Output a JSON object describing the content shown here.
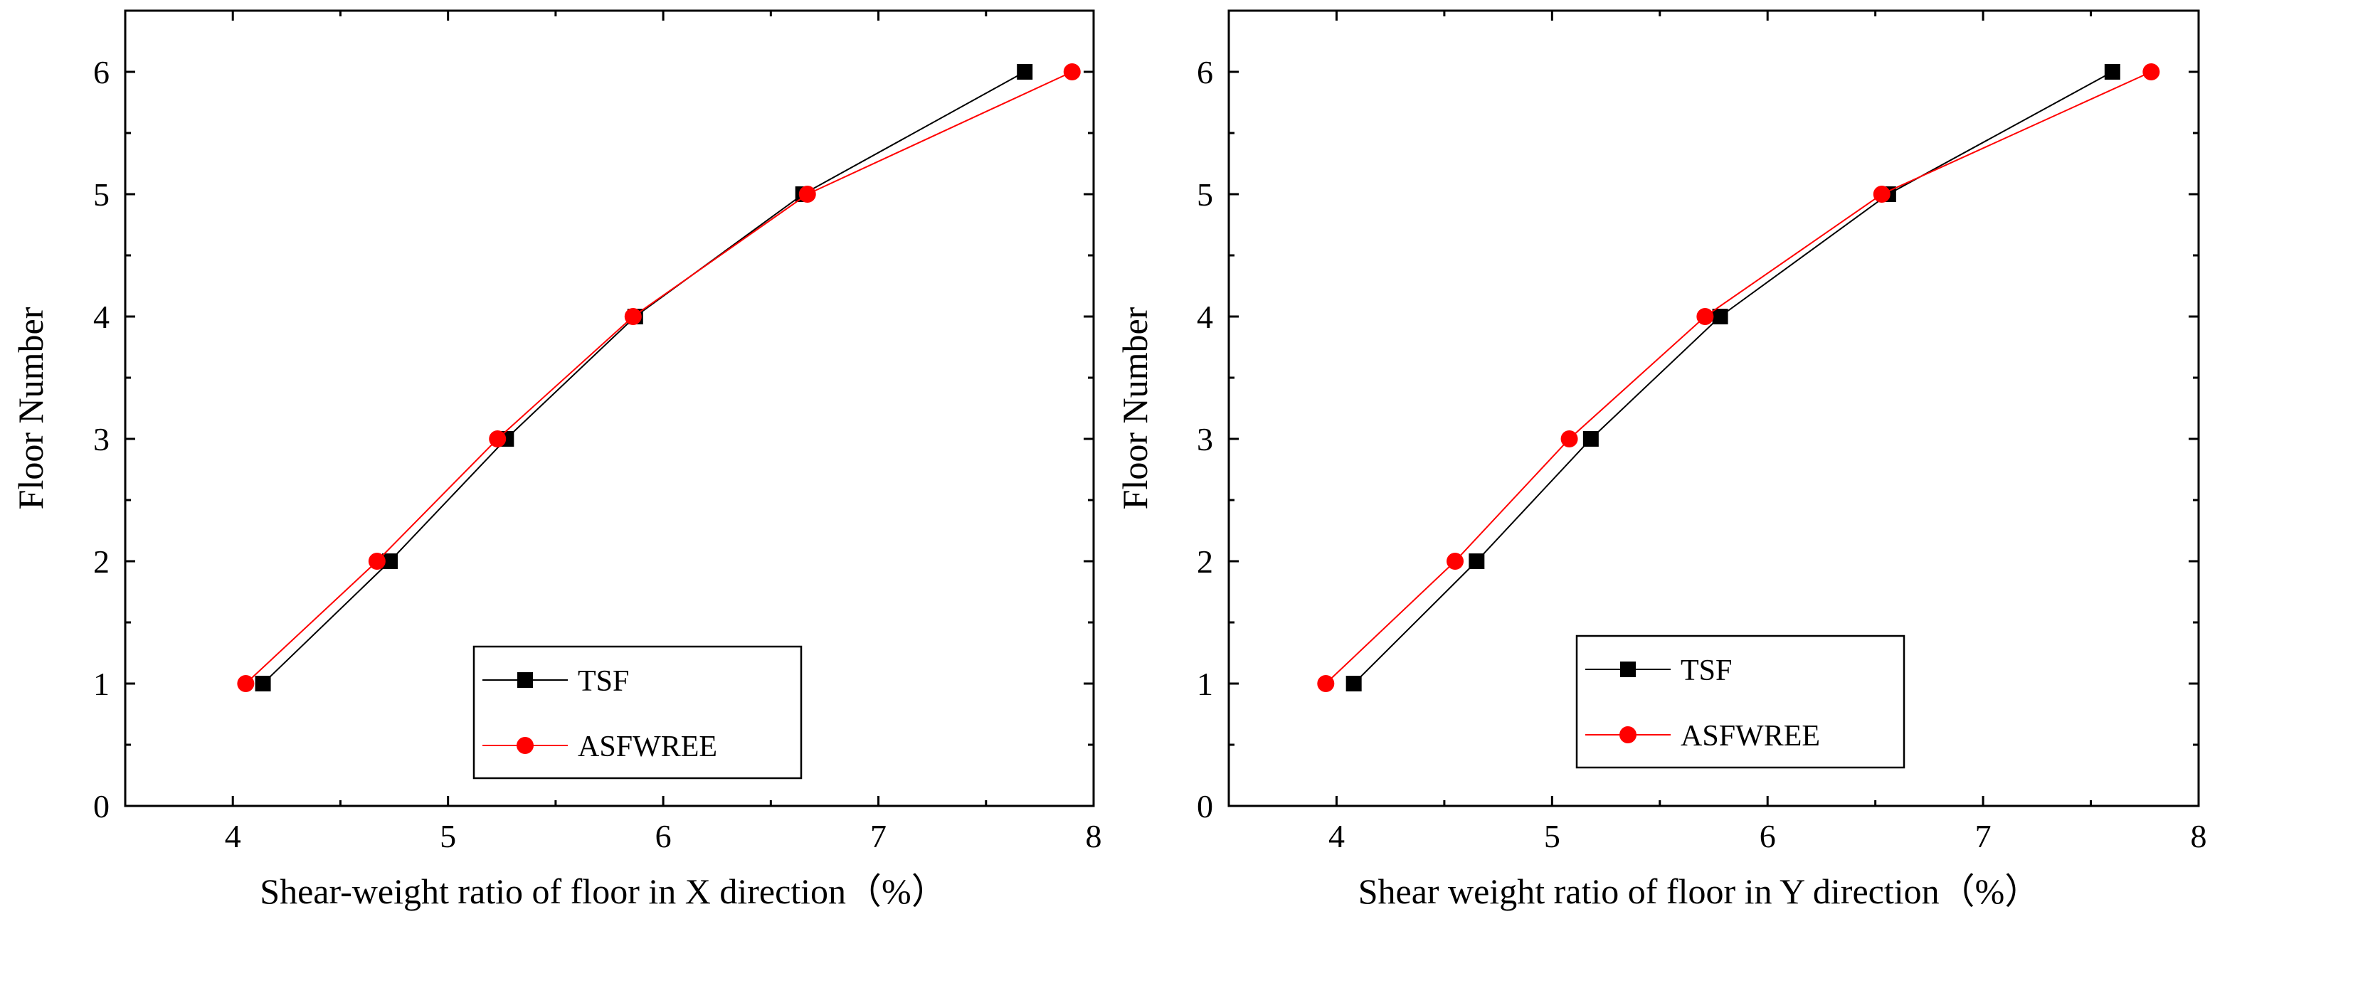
{
  "chart_data": [
    {
      "type": "line",
      "xlabel": "Shear-weight ratio of floor in X direction（%）",
      "ylabel": "Floor Number",
      "xlim": [
        3.5,
        8
      ],
      "ylim": [
        0,
        6.5
      ],
      "xticks": [
        4,
        5,
        6,
        7,
        8
      ],
      "yticks": [
        0,
        1,
        2,
        3,
        4,
        5,
        6
      ],
      "legend_position": "lower-right",
      "series": [
        {
          "name": "TSF",
          "color": "#000000",
          "marker": "square",
          "x": [
            4.14,
            4.73,
            5.27,
            5.87,
            6.65,
            7.68
          ],
          "y": [
            1,
            2,
            3,
            4,
            5,
            6
          ]
        },
        {
          "name": "ASFWREE",
          "color": "#ff0000",
          "marker": "circle",
          "x": [
            4.06,
            4.67,
            5.23,
            5.86,
            6.67,
            7.9
          ],
          "y": [
            1,
            2,
            3,
            4,
            5,
            6
          ]
        }
      ]
    },
    {
      "type": "line",
      "xlabel": "Shear weight ratio of floor in Y direction（%）",
      "ylabel": "Floor Number",
      "xlim": [
        3.5,
        8
      ],
      "ylim": [
        0,
        6.5
      ],
      "xticks": [
        4,
        5,
        6,
        7,
        8
      ],
      "yticks": [
        0,
        1,
        2,
        3,
        4,
        5,
        6
      ],
      "legend_position": "lower-right",
      "series": [
        {
          "name": "TSF",
          "color": "#000000",
          "marker": "square",
          "x": [
            4.08,
            4.65,
            5.18,
            5.78,
            6.56,
            7.6
          ],
          "y": [
            1,
            2,
            3,
            4,
            5,
            6
          ]
        },
        {
          "name": "ASFWREE",
          "color": "#ff0000",
          "marker": "circle",
          "x": [
            3.95,
            4.55,
            5.08,
            5.71,
            6.53,
            7.78
          ],
          "y": [
            1,
            2,
            3,
            4,
            5,
            6
          ]
        }
      ]
    }
  ]
}
